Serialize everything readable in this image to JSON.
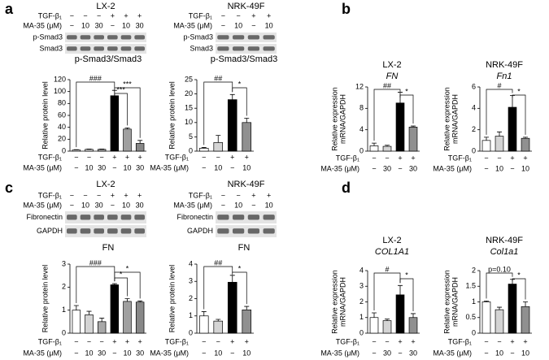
{
  "panel_labels": [
    "a",
    "b",
    "c",
    "d"
  ],
  "chart_data": [
    {
      "type": "bar",
      "title": "p-Smad3/Smad3",
      "ylabel": "Relative protein level",
      "blot": {
        "title": "LX-2",
        "rows": [
          "p-Smad3",
          "Smad3"
        ],
        "treatments": [
          {
            "label": "TGF-β₁",
            "values": [
              "−",
              "−",
              "−",
              "+",
              "+",
              "+"
            ]
          },
          {
            "label": "MA-35 (μM)",
            "values": [
              "−",
              "10",
              "30",
              "−",
              "10",
              "30"
            ]
          }
        ]
      },
      "values": [
        2,
        3,
        3,
        93,
        37,
        13
      ],
      "errors": [
        0.5,
        0.5,
        0.5,
        9,
        2,
        5
      ],
      "colors": [
        "#ffffff",
        "#d4d4d4",
        "#a8a8a8",
        "#000000",
        "#a0a0a0",
        "#888888"
      ],
      "ylim": [
        0,
        120
      ],
      "yticks": [
        0,
        20,
        40,
        60,
        80,
        100,
        120
      ],
      "brackets": [
        {
          "label": "###",
          "from": 0,
          "to": 3
        },
        {
          "label": "***",
          "from": 3,
          "to": 5
        },
        {
          "label": "***",
          "from": 3,
          "to": 4
        }
      ],
      "treatments": [
        {
          "label": "TGF-β₁",
          "values": [
            "−",
            "−",
            "−",
            "+",
            "+",
            "+"
          ]
        },
        {
          "label": "MA-35 (μM)",
          "values": [
            "−",
            "10",
            "30",
            "−",
            "10",
            "30"
          ]
        }
      ]
    },
    {
      "type": "bar",
      "title": "p-Smad3/Smad3",
      "ylabel": "Relative protein level",
      "blot": {
        "title": "NRK-49F",
        "rows": [
          "p-Smad3",
          "Smad3"
        ],
        "treatments": [
          {
            "label": "TGF-β₁",
            "values": [
              "−",
              "−",
              "+",
              "+"
            ]
          },
          {
            "label": "MA-35 (μM)",
            "values": [
              "−",
              "10",
              "−",
              "10"
            ]
          }
        ]
      },
      "values": [
        1,
        3,
        18,
        10
      ],
      "errors": [
        0.3,
        2.5,
        1.8,
        1.5
      ],
      "colors": [
        "#ffffff",
        "#d4d4d4",
        "#000000",
        "#909090"
      ],
      "ylim": [
        0,
        25
      ],
      "yticks": [
        0,
        5,
        10,
        15,
        20,
        25
      ],
      "brackets": [
        {
          "label": "##",
          "from": 0,
          "to": 2
        },
        {
          "label": "*",
          "from": 2,
          "to": 3
        }
      ],
      "treatments": [
        {
          "label": "TGF-β₁",
          "values": [
            "−",
            "−",
            "+",
            "+"
          ]
        },
        {
          "label": "MA-35 (μM)",
          "values": [
            "−",
            "10",
            "−",
            "10"
          ]
        }
      ]
    },
    {
      "type": "bar",
      "title": "LX-2",
      "subtitle": "FN",
      "ylabel": [
        "Relative expression",
        "mRNA/GAPDH"
      ],
      "values": [
        1,
        0.9,
        9,
        4.5
      ],
      "errors": [
        0.5,
        0.2,
        2,
        0.2
      ],
      "colors": [
        "#ffffff",
        "#d4d4d4",
        "#000000",
        "#909090"
      ],
      "ylim": [
        0,
        12
      ],
      "yticks": [
        0,
        4,
        8,
        12
      ],
      "brackets": [
        {
          "label": "##",
          "from": 0,
          "to": 2
        },
        {
          "label": "*",
          "from": 2,
          "to": 3
        }
      ],
      "treatments": [
        {
          "label": "TGF-β₁",
          "values": [
            "−",
            "−",
            "+",
            "+"
          ]
        },
        {
          "label": "MA-35 (μM)",
          "values": [
            "−",
            "30",
            "−",
            "30"
          ]
        }
      ]
    },
    {
      "type": "bar",
      "title": "NRK-49F",
      "subtitle": "Fn1",
      "ylabel": [
        "Relative expression",
        "mRNA/GAPDH"
      ],
      "values": [
        1,
        1.4,
        4.1,
        1.2
      ],
      "errors": [
        0.3,
        0.4,
        1.1,
        0.1
      ],
      "colors": [
        "#ffffff",
        "#d4d4d4",
        "#000000",
        "#909090"
      ],
      "ylim": [
        0,
        6
      ],
      "yticks": [
        0,
        2,
        4,
        6
      ],
      "brackets": [
        {
          "label": "#",
          "from": 0,
          "to": 2
        },
        {
          "label": "*",
          "from": 2,
          "to": 3
        }
      ],
      "treatments": [
        {
          "label": "TGF-β₁",
          "values": [
            "−",
            "−",
            "+",
            "+"
          ]
        },
        {
          "label": "MA-35 (μM)",
          "values": [
            "−",
            "10",
            "−",
            "10"
          ]
        }
      ]
    },
    {
      "type": "bar",
      "title": "FN",
      "ylabel": "Relative protein level",
      "blot": {
        "title": "LX-2",
        "rows": [
          "Fibronectin",
          "GAPDH"
        ],
        "treatments": [
          {
            "label": "TGF-β₁",
            "values": [
              "−",
              "−",
              "−",
              "+",
              "+",
              "+"
            ]
          },
          {
            "label": "MA-35 (μM)",
            "values": [
              "−",
              "10",
              "30",
              "−",
              "10",
              "30"
            ]
          }
        ]
      },
      "values": [
        1.0,
        0.8,
        0.5,
        2.1,
        1.38,
        1.35
      ],
      "errors": [
        0.2,
        0.15,
        0.15,
        0.05,
        0.12,
        0.05
      ],
      "colors": [
        "#ffffff",
        "#d4d4d4",
        "#a8a8a8",
        "#000000",
        "#a0a0a0",
        "#888888"
      ],
      "ylim": [
        0,
        3
      ],
      "yticks": [
        0,
        1,
        2,
        3
      ],
      "brackets": [
        {
          "label": "###",
          "from": 0,
          "to": 3
        },
        {
          "label": "*",
          "from": 3,
          "to": 5
        },
        {
          "label": "*",
          "from": 3,
          "to": 4
        }
      ],
      "treatments": [
        {
          "label": "TGF-β₁",
          "values": [
            "−",
            "−",
            "−",
            "+",
            "+",
            "+"
          ]
        },
        {
          "label": "MA-35 (μM)",
          "values": [
            "−",
            "10",
            "30",
            "−",
            "10",
            "30"
          ]
        }
      ]
    },
    {
      "type": "bar",
      "title": "FN",
      "ylabel": "Relative protein level",
      "blot": {
        "title": "NRK-49F",
        "rows": [
          "Fibronectin",
          "GAPDH"
        ],
        "treatments": [
          {
            "label": "TGF-β₁",
            "values": [
              "−",
              "−",
              "+",
              "+"
            ]
          },
          {
            "label": "MA-35 (μM)",
            "values": [
              "−",
              "10",
              "−",
              "10"
            ]
          }
        ]
      },
      "values": [
        1,
        0.7,
        2.95,
        1.35
      ],
      "errors": [
        0.25,
        0.1,
        0.4,
        0.2
      ],
      "colors": [
        "#ffffff",
        "#d4d4d4",
        "#000000",
        "#909090"
      ],
      "ylim": [
        0,
        4
      ],
      "yticks": [
        0,
        1,
        2,
        3,
        4
      ],
      "brackets": [
        {
          "label": "##",
          "from": 0,
          "to": 2
        },
        {
          "label": "*",
          "from": 2,
          "to": 3
        }
      ],
      "treatments": [
        {
          "label": "TGF-β₁",
          "values": [
            "−",
            "−",
            "+",
            "+"
          ]
        },
        {
          "label": "MA-35 (μM)",
          "values": [
            "−",
            "10",
            "−",
            "10"
          ]
        }
      ]
    },
    {
      "type": "bar",
      "title": "LX-2",
      "subtitle": "COL1A1",
      "ylabel": [
        "Relative expression",
        "mRNA/GAPDH"
      ],
      "values": [
        1,
        0.8,
        2.45,
        1.0
      ],
      "errors": [
        0.3,
        0.1,
        0.6,
        0.25
      ],
      "colors": [
        "#ffffff",
        "#d4d4d4",
        "#000000",
        "#909090"
      ],
      "ylim": [
        0,
        4
      ],
      "yticks": [
        0,
        1,
        2,
        3,
        4
      ],
      "brackets": [
        {
          "label": "#",
          "from": 0,
          "to": 2
        },
        {
          "label": "*",
          "from": 2,
          "to": 3
        }
      ],
      "treatments": [
        {
          "label": "TGF-β₁",
          "values": [
            "−",
            "−",
            "+",
            "+"
          ]
        },
        {
          "label": "MA-35 (μM)",
          "values": [
            "−",
            "30",
            "−",
            "30"
          ]
        }
      ]
    },
    {
      "type": "bar",
      "title": "NRK-49F",
      "subtitle": "Col1a1",
      "ylabel": [
        "Relative expression",
        "mRNA/GAPDH"
      ],
      "values": [
        1.0,
        0.75,
        1.57,
        0.85
      ],
      "errors": [
        0.03,
        0.08,
        0.15,
        0.15
      ],
      "colors": [
        "#ffffff",
        "#d4d4d4",
        "#000000",
        "#909090"
      ],
      "ylim": [
        0,
        2
      ],
      "yticks": [
        0,
        0.5,
        1,
        1.5,
        2
      ],
      "brackets": [
        {
          "label": "p=0.10",
          "from": 0,
          "to": 2
        },
        {
          "label": "*",
          "from": 2,
          "to": 3
        }
      ],
      "treatments": [
        {
          "label": "TGF-β₁",
          "values": [
            "−",
            "−",
            "+",
            "+"
          ]
        },
        {
          "label": "MA-35 (μM)",
          "values": [
            "−",
            "10",
            "−",
            "10"
          ]
        }
      ]
    }
  ]
}
